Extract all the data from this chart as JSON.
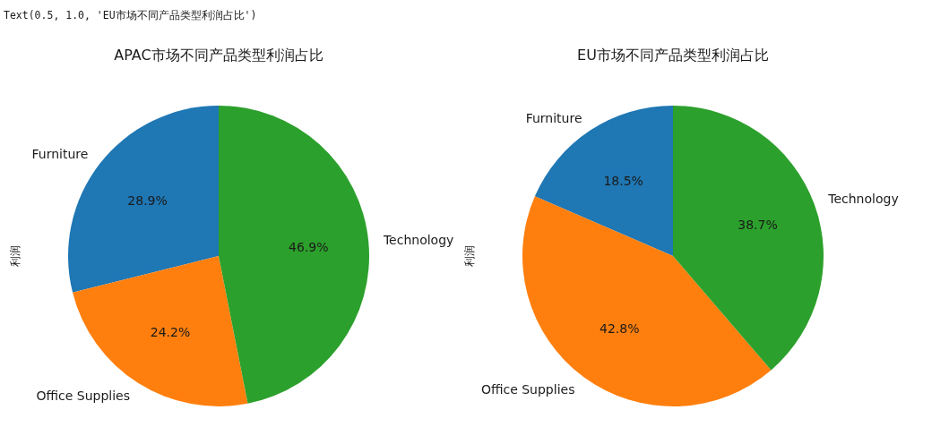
{
  "chart_data": [
    {
      "type": "pie",
      "title": "APAC市场不同产品类型利润占比",
      "ylabel": "利润",
      "categories": [
        "Furniture",
        "Office Supplies",
        "Technology"
      ],
      "values": [
        28.9,
        24.2,
        46.9
      ],
      "value_labels": [
        "28.9%",
        "24.2%",
        "46.9%"
      ],
      "colors": [
        "#1f77b4",
        "#ff7f0e",
        "#2ca02c"
      ],
      "annotations": [
        "Text(0.5, 1.0, 'EU市场不同产品类型利润占比')"
      ]
    },
    {
      "type": "pie",
      "title": "EU市场不同产品类型利润占比",
      "ylabel": "利润",
      "categories": [
        "Furniture",
        "Office Supplies",
        "Technology"
      ],
      "values": [
        18.5,
        42.8,
        38.7
      ],
      "value_labels": [
        "18.5%",
        "42.8%",
        "38.7%"
      ],
      "colors": [
        "#1f77b4",
        "#ff7f0e",
        "#2ca02c"
      ]
    }
  ]
}
